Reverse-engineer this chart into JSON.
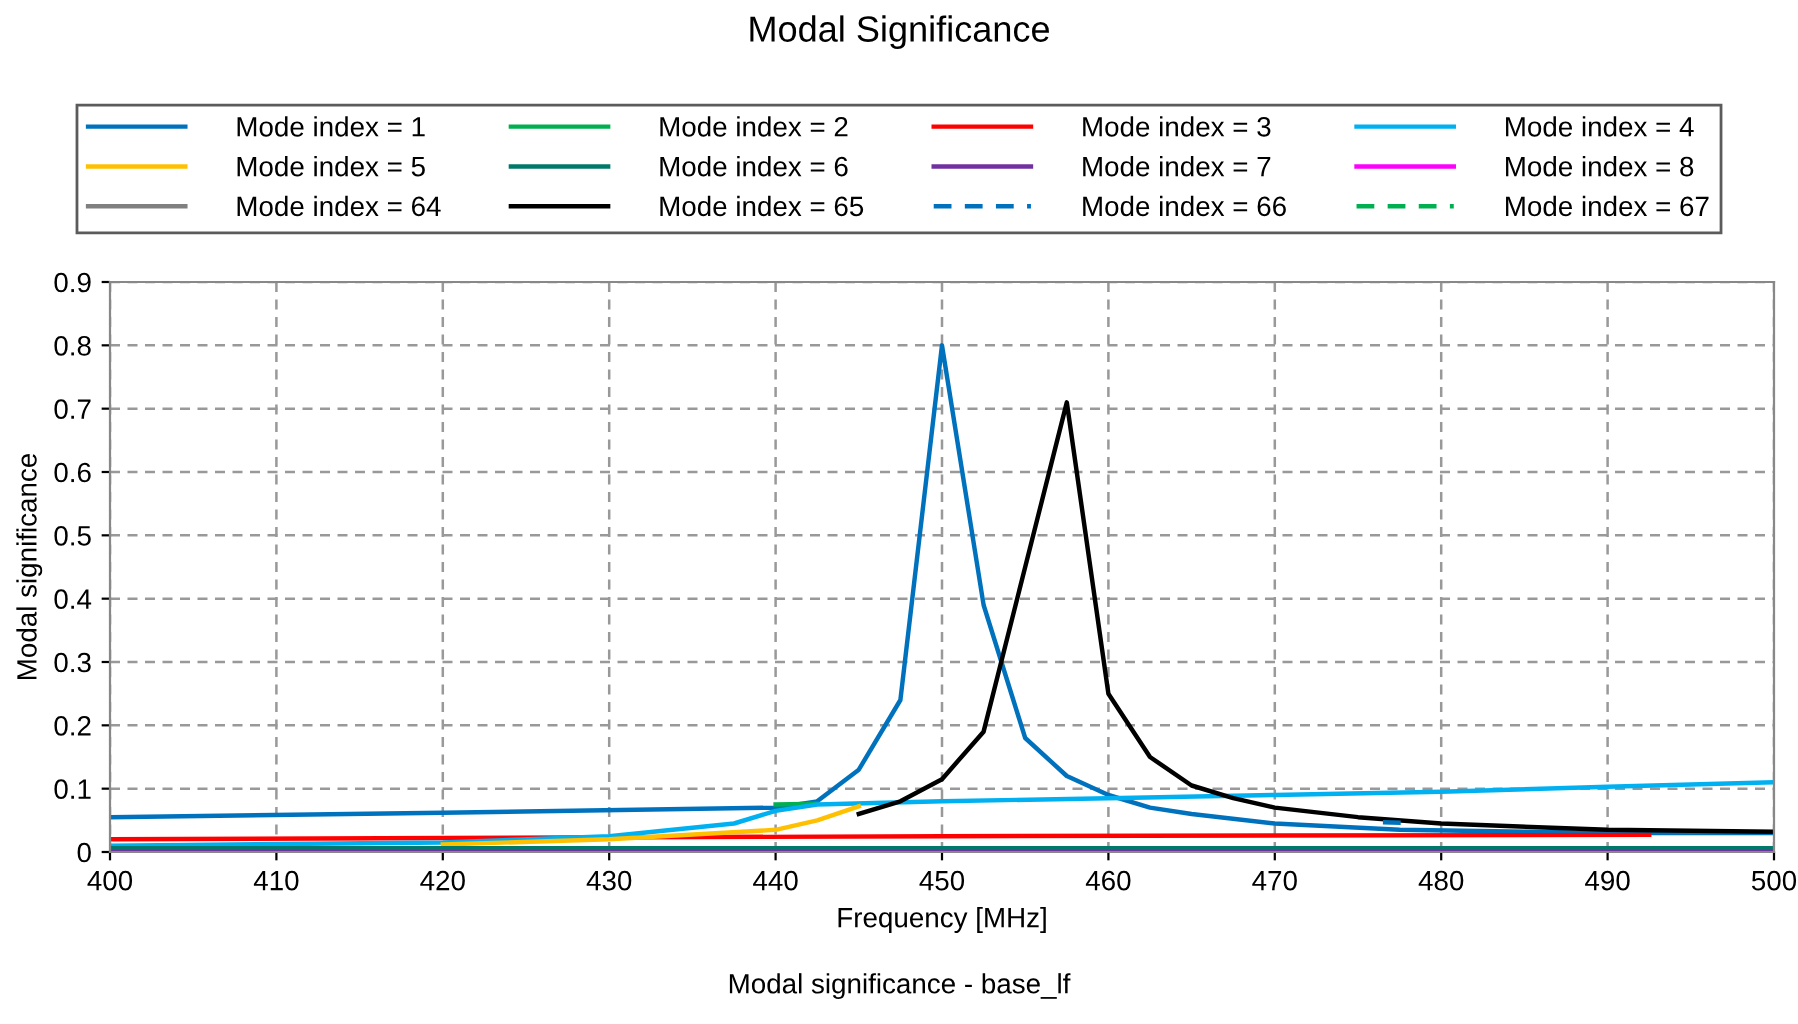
{
  "chart_data": {
    "type": "line",
    "title": "Modal Significance",
    "xlabel": "Frequency [MHz]",
    "ylabel": "Modal significance",
    "annotations": [
      "Modal significance - base_lf"
    ],
    "xlim": [
      400,
      500
    ],
    "xticks": [
      400,
      410,
      420,
      430,
      440,
      450,
      460,
      470,
      480,
      490,
      500
    ],
    "ylim": [
      0,
      0.9
    ],
    "yticks": [
      0,
      0.1,
      0.2,
      0.3,
      0.4,
      0.5,
      0.6,
      0.7,
      0.8,
      0.9
    ],
    "grid": true,
    "legend": "top",
    "marker": "none",
    "series": [
      {
        "name": "Mode index = 1",
        "color": "#0072bd",
        "x": [
          400,
          420,
          440,
          442.5,
          445,
          447.5,
          450,
          452.5,
          455,
          457.5,
          460,
          462.5,
          465,
          470,
          477.5,
          490,
          500
        ],
        "values": [
          0.055,
          0.062,
          0.07,
          0.08,
          0.13,
          0.24,
          0.8,
          0.39,
          0.18,
          0.12,
          0.09,
          0.07,
          0.06,
          0.045,
          0.035,
          0.03,
          0.03
        ]
      },
      {
        "name": "Mode index = 2",
        "color": "#00b050",
        "x": [
          440,
          442.5
        ],
        "values": [
          0.075,
          0.076
        ]
      },
      {
        "name": "Mode index = 3",
        "color": "#ff0000",
        "x": [
          400,
          450,
          492.5
        ],
        "values": [
          0.02,
          0.025,
          0.027
        ]
      },
      {
        "name": "Mode index = 4",
        "color": "#00b0f0",
        "x": [
          400,
          420,
          430,
          437.5,
          440,
          442.5,
          450,
          460,
          470,
          480,
          490,
          500
        ],
        "values": [
          0.01,
          0.015,
          0.025,
          0.045,
          0.065,
          0.075,
          0.08,
          0.085,
          0.09,
          0.095,
          0.103,
          0.11
        ]
      },
      {
        "name": "Mode index = 5",
        "color": "#ffc000",
        "x": [
          420,
          430,
          440,
          442.5,
          445
        ],
        "values": [
          0.012,
          0.02,
          0.035,
          0.05,
          0.072
        ]
      },
      {
        "name": "Mode index = 6",
        "color": "#00796b",
        "x": [
          400,
          500
        ],
        "values": [
          0.006,
          0.006
        ]
      },
      {
        "name": "Mode index = 7",
        "color": "#7030a0",
        "x": [
          400,
          500
        ],
        "values": [
          0.0,
          0.0
        ]
      },
      {
        "name": "Mode index = 8",
        "color": "#ff00ff"
      },
      {
        "name": "Mode index = 64",
        "color": "#808080"
      },
      {
        "name": "Mode index = 65",
        "color": "#000000",
        "x": [
          445,
          447.5,
          450,
          452.5,
          455,
          457.5,
          460,
          462.5,
          465,
          467.5,
          470,
          475,
          480,
          490,
          500
        ],
        "values": [
          0.06,
          0.08,
          0.115,
          0.19,
          0.45,
          0.71,
          0.25,
          0.15,
          0.105,
          0.085,
          0.07,
          0.055,
          0.045,
          0.035,
          0.032
        ]
      },
      {
        "name": "Mode index = 66",
        "color": "#0072bd",
        "line_style": "dashed",
        "x": [
          476.5,
          478
        ],
        "values": [
          0.047,
          0.046
        ]
      },
      {
        "name": "Mode index = 67",
        "color": "#00b050",
        "line_style": "dashed"
      }
    ]
  }
}
